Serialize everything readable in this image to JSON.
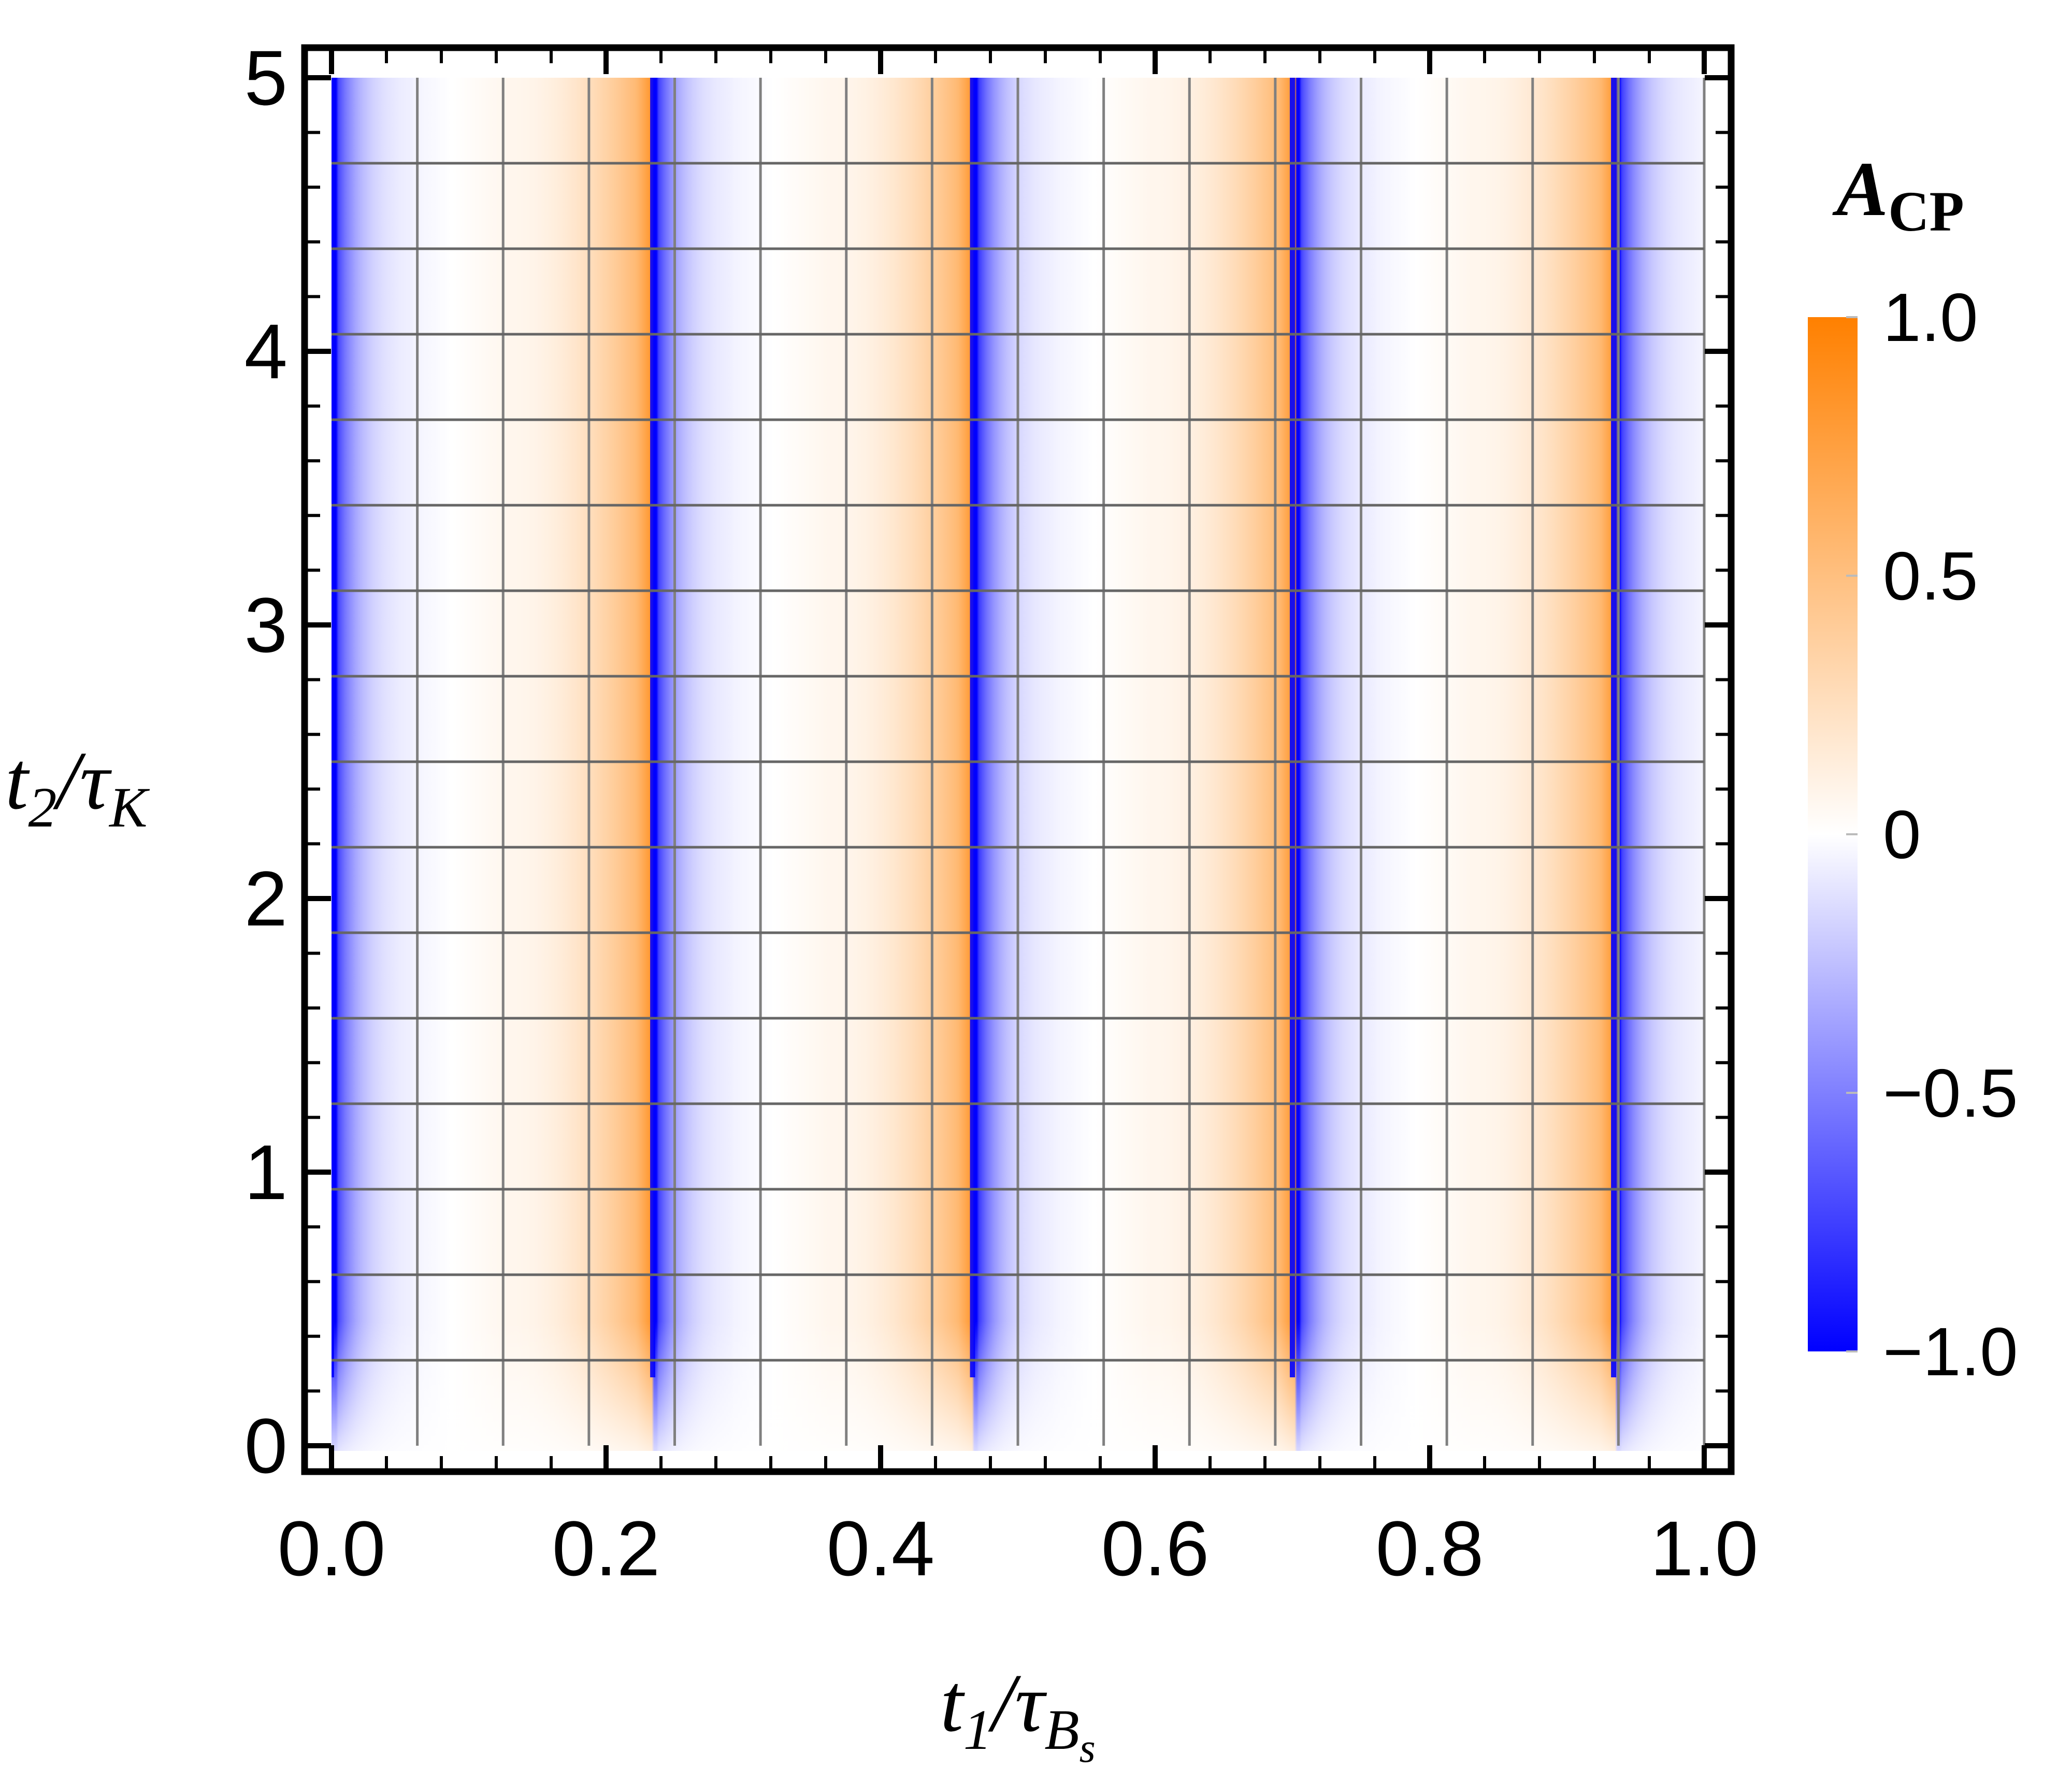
{
  "chart_data": {
    "type": "heatmap",
    "title": "",
    "xlabel": {
      "main": "t",
      "sub": "1",
      "sep": "/",
      "tau": "τ",
      "tau_sub": "B",
      "tau_subsub": "s"
    },
    "ylabel": {
      "main": "t",
      "sub": "2",
      "sep": "/",
      "tau": "τ",
      "tau_sub": "K"
    },
    "xlim": [
      0,
      1
    ],
    "ylim": [
      0,
      5
    ],
    "x_ticks": [
      0.0,
      0.2,
      0.4,
      0.6,
      0.8,
      1.0
    ],
    "x_tick_labels": [
      "0.0",
      "0.2",
      "0.4",
      "0.6",
      "0.8",
      "1.0"
    ],
    "y_ticks": [
      0,
      1,
      2,
      3,
      4,
      5
    ],
    "y_tick_labels": [
      "0",
      "1",
      "2",
      "3",
      "4",
      "5"
    ],
    "grid": true,
    "grid_x": [
      0.0625,
      0.125,
      0.1875,
      0.25,
      0.3125,
      0.375,
      0.4375,
      0.5,
      0.5625,
      0.625,
      0.6875,
      0.75,
      0.8125,
      0.875,
      0.9375,
      1.0
    ],
    "grid_y": [
      0.3125,
      0.625,
      0.9375,
      1.25,
      1.5625,
      1.875,
      2.1875,
      2.5,
      2.8125,
      3.125,
      3.4375,
      3.75,
      4.0625,
      4.375,
      4.6875
    ],
    "oscillation_boundaries_x": [
      0.0,
      0.234,
      0.467,
      0.7,
      0.934
    ],
    "colorbar": {
      "title_main": "A",
      "title_sub": "CP",
      "range": [
        -1.0,
        1.0
      ],
      "ticks": [
        1.0,
        0.5,
        0,
        -0.5,
        -1.0
      ],
      "tick_labels": [
        "1.0",
        "0.5",
        "0",
        "−0.5",
        "−1.0"
      ],
      "color_min": "#0000ff",
      "color_mid": "#ffffff",
      "color_max": "#ff8000"
    }
  }
}
